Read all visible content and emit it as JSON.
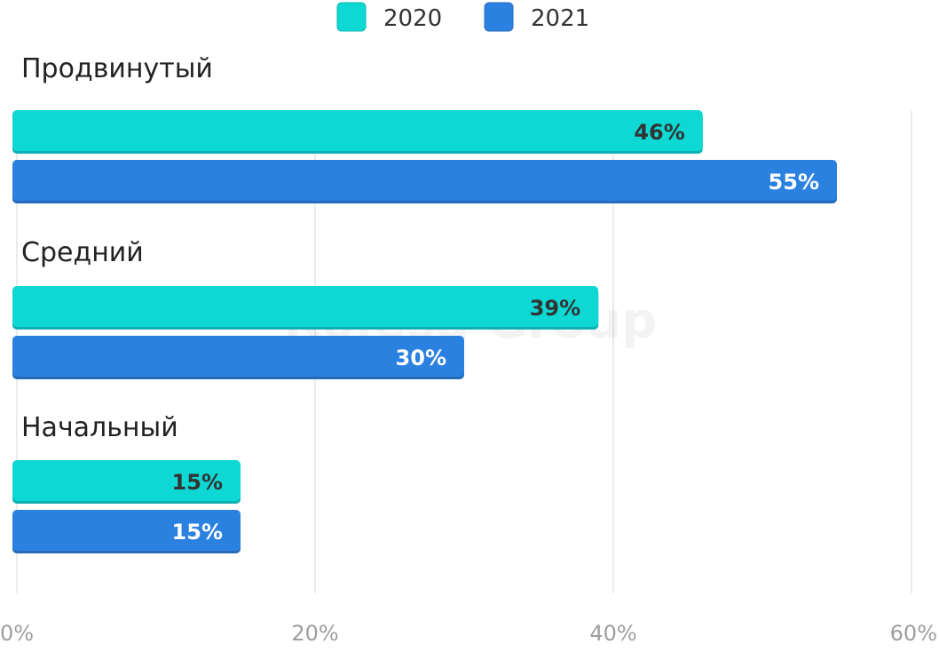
{
  "watermark": "Kolesa Group",
  "chart_data": {
    "type": "bar",
    "orientation": "horizontal",
    "categories": [
      "Продвинутый",
      "Средний",
      "Начальный"
    ],
    "series": [
      {
        "name": "2020",
        "color": "#0dd8d4",
        "values": [
          46,
          39,
          15
        ],
        "labels": [
          "46%",
          "39%",
          "15%"
        ]
      },
      {
        "name": "2021",
        "color": "#2b81e0",
        "values": [
          55,
          30,
          15
        ],
        "labels": [
          "55%",
          "30%",
          "15%"
        ]
      }
    ],
    "xlim": [
      0,
      60
    ],
    "ticks": [
      0,
      20,
      40,
      60
    ],
    "tick_labels": [
      "0%",
      "20%",
      "40%",
      "60%"
    ],
    "grid": true,
    "legend_position": "top-center",
    "value_label_colors": [
      "#333333",
      "#ffffff"
    ]
  }
}
